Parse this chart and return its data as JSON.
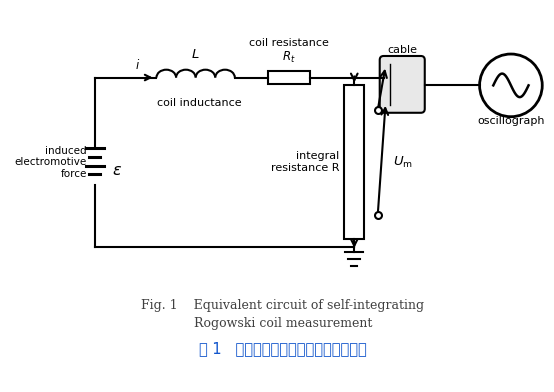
{
  "fig_caption_en_line1": "Fig. 1    Equivalent circuit of self-integrating",
  "fig_caption_en_line2": "Rogowski coil measurement",
  "fig_caption_cn": "图 1   自积分式罗氏线圈的测量等效线路",
  "label_induced": "induced\nelectromotive\nforce",
  "label_coil_inductance": "coil inductance",
  "label_coil_resistance": "coil resistance",
  "label_cable": "cable",
  "label_integral": "integral\nresistance R",
  "label_oscillograph": "oscillograph",
  "label_i": "i",
  "label_L": "L",
  "label_epsilon": "ε",
  "bg_color": "#ffffff",
  "line_color": "#000000",
  "caption_color_en": "#404040",
  "caption_color_cn": "#1155cc"
}
